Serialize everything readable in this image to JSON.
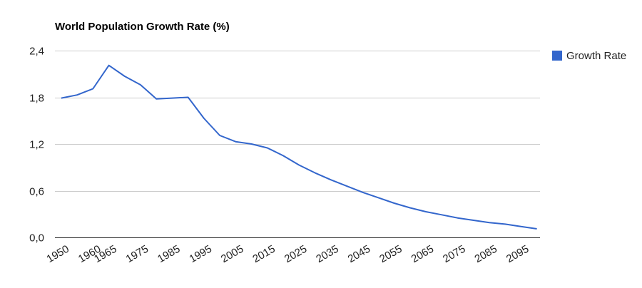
{
  "chart_data": {
    "type": "line",
    "title": "World Population Growth Rate (%)",
    "xlabel": "",
    "ylabel": "",
    "ylim": [
      0,
      2.4
    ],
    "y_ticks": [
      "0,0",
      "0,6",
      "1,2",
      "1,8",
      "2,4"
    ],
    "x_tick_labels": [
      "1950",
      "1960",
      "1965",
      "1975",
      "1985",
      "1995",
      "2005",
      "2015",
      "2025",
      "2035",
      "2045",
      "2055",
      "2065",
      "2075",
      "2085",
      "2095"
    ],
    "legend_position": "right",
    "grid": true,
    "series": [
      {
        "name": "Growth Rate",
        "color": "#3366cc",
        "x": [
          1950,
          1955,
          1960,
          1965,
          1970,
          1975,
          1980,
          1985,
          1990,
          1995,
          2000,
          2005,
          2010,
          2015,
          2020,
          2025,
          2030,
          2035,
          2040,
          2045,
          2050,
          2055,
          2060,
          2065,
          2070,
          2075,
          2080,
          2085,
          2090,
          2095,
          2100
        ],
        "values": [
          1.79,
          1.83,
          1.91,
          2.21,
          2.07,
          1.96,
          1.78,
          1.79,
          1.8,
          1.53,
          1.31,
          1.23,
          1.2,
          1.15,
          1.05,
          0.93,
          0.83,
          0.74,
          0.66,
          0.58,
          0.51,
          0.44,
          0.38,
          0.33,
          0.29,
          0.25,
          0.22,
          0.19,
          0.17,
          0.14,
          0.11
        ]
      }
    ]
  }
}
